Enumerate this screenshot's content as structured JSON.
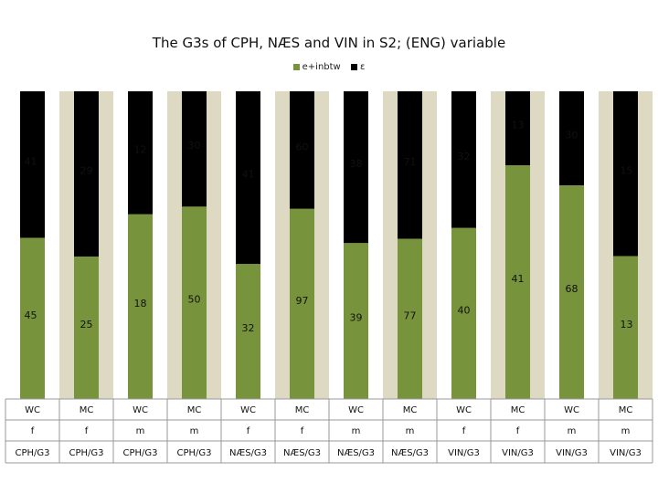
{
  "colors": {
    "green": "#77933c",
    "black": "#000000",
    "stripe": "#ddd9c3"
  },
  "chart_data": {
    "type": "bar",
    "stacked": "percent",
    "title": "The G3s of CPH, NÆS and VIN in S2; (ENG) variable",
    "legend": [
      "e+inbtw",
      "ε"
    ],
    "series": [
      {
        "name": "e+inbtw",
        "values": [
          45,
          25,
          18,
          50,
          32,
          97,
          39,
          77,
          40,
          41,
          68,
          13
        ]
      },
      {
        "name": "ε",
        "values": [
          41,
          29,
          12,
          30,
          41,
          60,
          38,
          71,
          32,
          13,
          30,
          15
        ]
      }
    ],
    "categories": [
      [
        "WC",
        "f",
        "CPH/G3"
      ],
      [
        "MC",
        "f",
        "CPH/G3"
      ],
      [
        "WC",
        "m",
        "CPH/G3"
      ],
      [
        "MC",
        "m",
        "CPH/G3"
      ],
      [
        "WC",
        "f",
        "NÆS/G3"
      ],
      [
        "MC",
        "f",
        "NÆS/G3"
      ],
      [
        "WC",
        "m",
        "NÆS/G3"
      ],
      [
        "MC",
        "m",
        "NÆS/G3"
      ],
      [
        "WC",
        "f",
        "VIN/G3"
      ],
      [
        "MC",
        "f",
        "VIN/G3"
      ],
      [
        "WC",
        "m",
        "VIN/G3"
      ],
      [
        "MC",
        "m",
        "VIN/G3"
      ]
    ],
    "ylim": [
      0,
      100
    ]
  }
}
